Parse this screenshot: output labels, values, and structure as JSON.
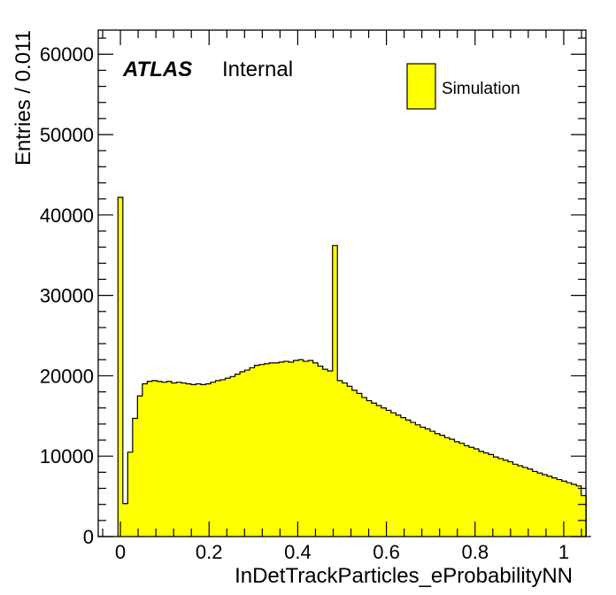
{
  "chart_data": {
    "type": "histogram",
    "xlabel": "InDetTrackParticles_eProbabilityNN",
    "ylabel": "Entries / 0.011",
    "xlim": [
      -0.05,
      1.05
    ],
    "ylim": [
      0,
      63000
    ],
    "xticks": [
      0,
      0.2,
      0.4,
      0.6,
      0.8,
      1
    ],
    "xtick_labels": [
      "0",
      "0.2",
      "0.4",
      "0.6",
      "0.8",
      "1"
    ],
    "yticks": [
      0,
      10000,
      20000,
      30000,
      40000,
      50000,
      60000
    ],
    "ytick_labels": [
      "0",
      "10000",
      "20000",
      "30000",
      "40000",
      "50000",
      "60000"
    ],
    "grid": false,
    "legend_position": "top-right",
    "annotation": {
      "experiment": "ATLAS",
      "status": "Internal"
    },
    "series": [
      {
        "name": "Simulation",
        "color": "#ffff00",
        "edge_color": "#000000",
        "bin_width": 0.011,
        "bin_start": -0.0055,
        "values": [
          42200,
          4100,
          10500,
          14700,
          17500,
          19000,
          19300,
          19400,
          19300,
          19200,
          19300,
          19100,
          19200,
          19100,
          19000,
          18900,
          19000,
          18900,
          19000,
          19200,
          19400,
          19500,
          19700,
          19900,
          20200,
          20500,
          20700,
          21000,
          21300,
          21400,
          21500,
          21600,
          21600,
          21700,
          21800,
          21700,
          21900,
          22000,
          21800,
          21900,
          21600,
          21200,
          20800,
          20600,
          36200,
          19400,
          19100,
          18700,
          18200,
          17800,
          17300,
          16900,
          16600,
          16300,
          16000,
          15700,
          15400,
          15100,
          14800,
          14500,
          14200,
          13900,
          13600,
          13400,
          13100,
          12800,
          12600,
          12300,
          12100,
          11800,
          11600,
          11300,
          11100,
          10900,
          10600,
          10400,
          10200,
          9900,
          9700,
          9500,
          9300,
          9000,
          8800,
          8600,
          8400,
          8100,
          7900,
          7700,
          7500,
          7300,
          7100,
          6900,
          6700,
          6500,
          6300,
          5100,
          0
        ]
      }
    ]
  }
}
